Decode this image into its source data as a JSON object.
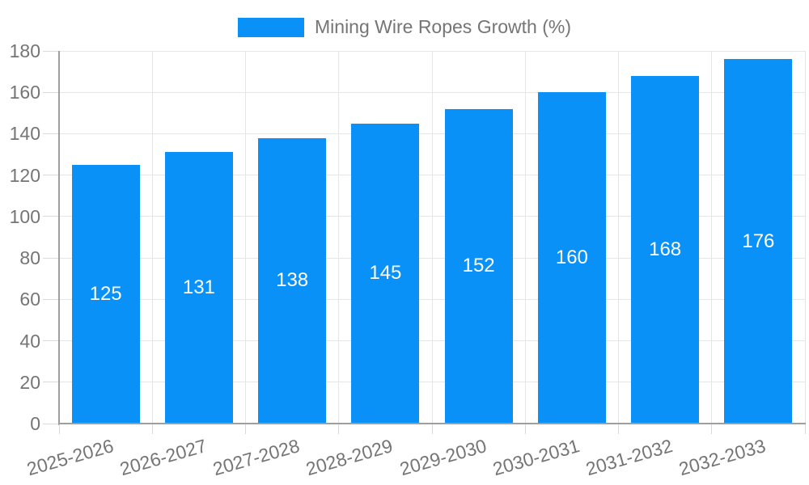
{
  "chart_data": {
    "type": "bar",
    "title": "",
    "legend": "Mining Wire Ropes Growth (%)",
    "legend_position": "top",
    "categories": [
      "2025-2026",
      "2026-2027",
      "2027-2028",
      "2028-2029",
      "2029-2030",
      "2030-2031",
      "2031-2032",
      "2032-2033"
    ],
    "values": [
      125,
      131,
      138,
      145,
      152,
      160,
      168,
      176
    ],
    "xlabel": "",
    "ylabel": "",
    "ylim": [
      0,
      180
    ],
    "ytick_step": 20,
    "yticks": [
      0,
      20,
      40,
      60,
      80,
      100,
      120,
      140,
      160,
      180
    ],
    "grid": true,
    "bar_labels_inside": true,
    "colors": {
      "bar": "#0991f8",
      "bar_label": "#ffffff",
      "axis_text": "#757575",
      "axis_line": "#9e9e9e",
      "gridline": "#e6e6e6",
      "tick": "#d9d9d9",
      "background": "#ffffff"
    }
  }
}
